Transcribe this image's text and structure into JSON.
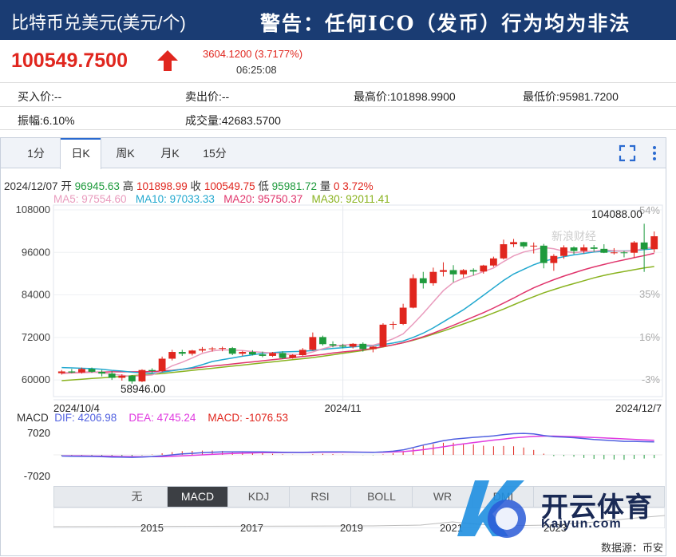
{
  "header": {
    "title": "比特币兑美元(美元/个)",
    "warning": "警告：任何ICO（发币）行为均为非法"
  },
  "quote": {
    "price": "100549.7500",
    "change": "3604.1200 (3.7177%)",
    "time": "06:25:08"
  },
  "stats": {
    "bid": "买入价:--",
    "ask": "卖出价:--",
    "high": "最高价:101898.9900",
    "low": "最低价:95981.7200",
    "amplitude": "振幅:6.10%",
    "volume": "成交量:42683.5700"
  },
  "tabs": [
    "1分",
    "日K",
    "周K",
    "月K",
    "15分"
  ],
  "active_tab": "日K",
  "ohlc_line": {
    "date": "2024/12/07",
    "open_label": "开",
    "open": "96945.63",
    "high_label": "高",
    "high": "101898.99",
    "close_label": "收",
    "close": "100549.75",
    "low_label": "低",
    "low": "95981.72",
    "vol_label": "量",
    "vol": "0",
    "pct": "3.72%"
  },
  "ma_line": {
    "ma5": "MA5: 97554.60",
    "ma10": "MA10: 97033.33",
    "ma20": "MA20: 95750.37",
    "ma30": "MA30: 92011.41"
  },
  "macd_line": {
    "label": "MACD",
    "dif": "DIF: 4206.98",
    "dea": "DEA: 4745.24",
    "macd": "MACD: -1076.53"
  },
  "chart_data": {
    "type": "candlestick",
    "y_ticks": [
      "108000",
      "96000",
      "84000",
      "72000",
      "60000"
    ],
    "pct_ticks": [
      "54%",
      "35%",
      "16%",
      "-3%"
    ],
    "x_labels": [
      "2024/10/4",
      "2024/11",
      "2024/12/7"
    ],
    "max_label": "104088.00",
    "min_label": "58946.00",
    "ylim": [
      58000,
      108000
    ],
    "candles": [
      [
        61900,
        62800,
        61500,
        62400
      ],
      [
        62400,
        63100,
        61900,
        62100
      ],
      [
        62100,
        63500,
        61800,
        63100
      ],
      [
        63100,
        63500,
        62000,
        62300
      ],
      [
        62300,
        62800,
        61000,
        61800
      ],
      [
        61800,
        62500,
        60000,
        60600
      ],
      [
        60600,
        61600,
        59800,
        61200
      ],
      [
        61200,
        61400,
        58946,
        59600
      ],
      [
        59600,
        63000,
        59400,
        62800
      ],
      [
        62800,
        63300,
        62000,
        62500
      ],
      [
        62500,
        66600,
        62200,
        66000
      ],
      [
        66000,
        68500,
        65500,
        67900
      ],
      [
        67900,
        68500,
        66800,
        67400
      ],
      [
        67400,
        68500,
        66900,
        68300
      ],
      [
        68300,
        69300,
        67800,
        68700
      ],
      [
        68700,
        69300,
        68000,
        68900
      ],
      [
        68900,
        69400,
        68100,
        69000
      ],
      [
        69000,
        69300,
        67000,
        67400
      ],
      [
        67400,
        68200,
        66800,
        67900
      ],
      [
        67900,
        68400,
        66900,
        67200
      ],
      [
        67200,
        68000,
        66400,
        66800
      ],
      [
        66800,
        67900,
        66500,
        67600
      ],
      [
        67600,
        68100,
        65900,
        66200
      ],
      [
        66200,
        67300,
        66000,
        67000
      ],
      [
        67000,
        69000,
        66800,
        68500
      ],
      [
        68500,
        73400,
        68300,
        72100
      ],
      [
        72100,
        72500,
        69700,
        70100
      ],
      [
        70100,
        70900,
        69200,
        69700
      ],
      [
        69700,
        70200,
        68900,
        69400
      ],
      [
        69400,
        70400,
        68900,
        70200
      ],
      [
        70200,
        70600,
        68000,
        68700
      ],
      [
        68700,
        69600,
        67800,
        69400
      ],
      [
        69400,
        76000,
        69200,
        75600
      ],
      [
        75600,
        76500,
        74300,
        75800
      ],
      [
        75800,
        81500,
        75500,
        80400
      ],
      [
        80400,
        89800,
        80200,
        88700
      ],
      [
        88700,
        90500,
        85800,
        87300
      ],
      [
        87300,
        91700,
        86600,
        90500
      ],
      [
        90500,
        93200,
        89200,
        91000
      ],
      [
        91000,
        92400,
        87600,
        89800
      ],
      [
        89800,
        91300,
        88900,
        91000
      ],
      [
        91000,
        91500,
        89500,
        90600
      ],
      [
        90600,
        92500,
        90000,
        92300
      ],
      [
        92300,
        94800,
        91900,
        94300
      ],
      [
        94300,
        99600,
        94000,
        98300
      ],
      [
        98300,
        99800,
        97500,
        98900
      ],
      [
        98900,
        99000,
        97100,
        97700
      ],
      [
        97700,
        98800,
        95700,
        97900
      ],
      [
        97900,
        98400,
        91500,
        93000
      ],
      [
        93000,
        95500,
        90800,
        95000
      ],
      [
        95000,
        98000,
        94200,
        97400
      ],
      [
        97400,
        97700,
        95500,
        96400
      ],
      [
        96400,
        98200,
        95700,
        97400
      ],
      [
        97400,
        98100,
        96200,
        97000
      ],
      [
        97000,
        98300,
        95800,
        95900
      ],
      [
        95900,
        97200,
        95400,
        96000
      ],
      [
        96000,
        96400,
        94600,
        95900
      ],
      [
        95900,
        99200,
        94500,
        98800
      ],
      [
        98800,
        104088,
        90500,
        96900
      ],
      [
        96900,
        101899,
        95982,
        100550
      ]
    ],
    "ma5": [
      62000,
      62100,
      62200,
      62300,
      62000,
      61600,
      61300,
      61000,
      61200,
      61400,
      62500,
      64000,
      65000,
      66200,
      67500,
      68200,
      68500,
      68400,
      68300,
      68000,
      67800,
      67600,
      67400,
      67200,
      67200,
      67900,
      68800,
      69500,
      69900,
      70000,
      69900,
      69800,
      70600,
      71600,
      73000,
      75800,
      78800,
      82000,
      85200,
      87500,
      88700,
      89500,
      90600,
      91600,
      93400,
      95000,
      96100,
      96700,
      97400,
      97000,
      96300,
      95900,
      96200,
      96300,
      96700,
      96500,
      96300,
      96500,
      97100,
      97550
    ],
    "ma10": [
      63500,
      63400,
      63300,
      63200,
      63000,
      62700,
      62500,
      62200,
      62000,
      61900,
      62200,
      62600,
      63000,
      63500,
      64300,
      65200,
      65700,
      66200,
      66700,
      67100,
      67500,
      67700,
      67900,
      68000,
      68100,
      68300,
      68600,
      68900,
      69100,
      69300,
      69500,
      69700,
      70000,
      70400,
      71000,
      72000,
      73200,
      74700,
      76400,
      78100,
      79800,
      81800,
      83900,
      86000,
      88100,
      89900,
      91200,
      92500,
      93500,
      94200,
      94800,
      95300,
      95700,
      96100,
      96300,
      96400,
      96400,
      96500,
      96800,
      97033
    ],
    "ma20": [
      61900,
      62000,
      62100,
      62200,
      62200,
      62300,
      62300,
      62300,
      62300,
      62400,
      62500,
      62700,
      63000,
      63300,
      63600,
      63900,
      64200,
      64500,
      64800,
      65100,
      65400,
      65700,
      66000,
      66300,
      66600,
      66900,
      67200,
      67600,
      67900,
      68200,
      68500,
      68900,
      69400,
      69900,
      70500,
      71300,
      72200,
      73200,
      74300,
      75400,
      76600,
      77800,
      79000,
      80300,
      81700,
      83100,
      84600,
      86000,
      87200,
      88300,
      89300,
      90200,
      91100,
      91900,
      92600,
      93300,
      93900,
      94500,
      95100,
      95750
    ],
    "ma30": [
      59800,
      60000,
      60200,
      60400,
      60600,
      60800,
      61000,
      61200,
      61400,
      61600,
      61800,
      62100,
      62400,
      62700,
      63000,
      63300,
      63600,
      63900,
      64200,
      64500,
      64800,
      65100,
      65400,
      65700,
      66000,
      66300,
      66700,
      67100,
      67500,
      67900,
      68300,
      68800,
      69300,
      69900,
      70500,
      71200,
      72000,
      72900,
      73800,
      74800,
      75800,
      76800,
      77800,
      78900,
      80000,
      81200,
      82400,
      83500,
      84600,
      85500,
      86400,
      87200,
      88000,
      88800,
      89500,
      90100,
      90600,
      91100,
      91600,
      92011
    ],
    "macd": {
      "ticks": [
        "7020",
        "-7020"
      ],
      "dif": [
        -400,
        -450,
        -500,
        -520,
        -600,
        -700,
        -760,
        -800,
        -700,
        -550,
        -300,
        0,
        300,
        500,
        700,
        850,
        950,
        1000,
        1020,
        1000,
        960,
        900,
        850,
        800,
        780,
        900,
        1000,
        1000,
        950,
        900,
        850,
        800,
        950,
        1200,
        1600,
        2400,
        3200,
        3900,
        4600,
        5100,
        5400,
        5700,
        5900,
        6200,
        6600,
        6900,
        7000,
        6800,
        6300,
        5900,
        5800,
        5600,
        5300,
        5000,
        4800,
        4600,
        4400,
        4400,
        4300,
        4207
      ],
      "dea": [
        -300,
        -320,
        -350,
        -380,
        -420,
        -480,
        -540,
        -600,
        -620,
        -610,
        -560,
        -450,
        -300,
        -150,
        0,
        150,
        300,
        430,
        540,
        620,
        690,
        730,
        760,
        770,
        770,
        790,
        830,
        870,
        890,
        890,
        880,
        860,
        870,
        940,
        1070,
        1330,
        1700,
        2140,
        2630,
        3120,
        3570,
        4000,
        4400,
        4800,
        5150,
        5500,
        5800,
        6000,
        6100,
        6100,
        6000,
        5900,
        5800,
        5650,
        5500,
        5350,
        5200,
        5050,
        4900,
        4745
      ]
    }
  },
  "indicators": [
    "无",
    "MACD",
    "KDJ",
    "RSI",
    "BOLL",
    "WR",
    "DMI"
  ],
  "active_indicator": "MACD",
  "nav_buttons": [
    "▲",
    "▼"
  ],
  "years": [
    "2015",
    "2017",
    "2019",
    "2021",
    "2023"
  ],
  "source": "数据源：币安",
  "watermark": {
    "cn": "开云体育",
    "en": "Kaiyun.com",
    "sina": "新浪财经"
  }
}
